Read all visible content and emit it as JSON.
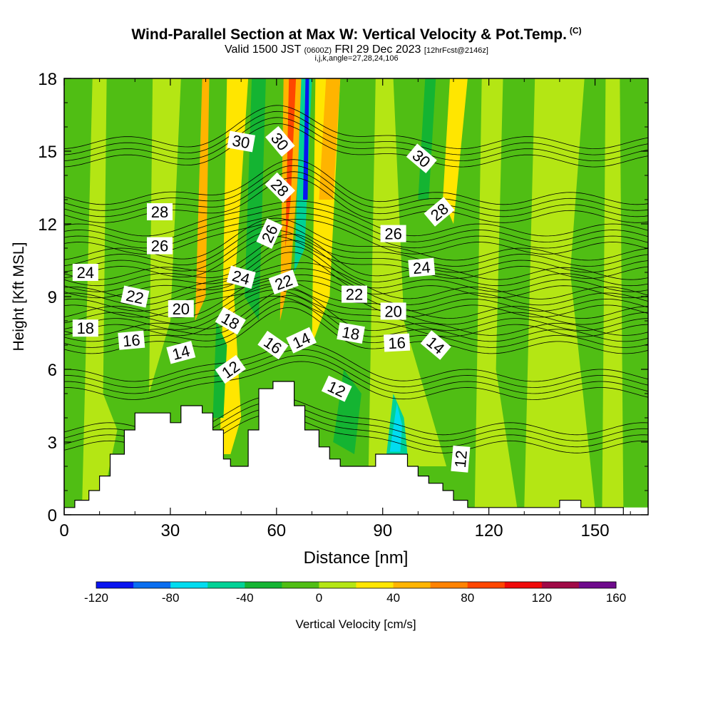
{
  "title": {
    "main": "Wind-Parallel Section at Max W: Vertical Velocity & Pot.Temp.",
    "copyright": "(C)",
    "valid_prefix": "Valid 1500 JST",
    "utc": "(0600Z)",
    "valid_date": "FRI 29 Dec 2023",
    "forecast": "[12hrFcst@2146z]",
    "indices": "i,j,k,angle=27,28,24,106"
  },
  "chart_data": {
    "type": "heatmap",
    "xlabel": "Distance [nm]",
    "ylabel": "Height [Kft MSL]",
    "xlim": [
      0,
      165
    ],
    "ylim": [
      0,
      18
    ],
    "xticks": [
      0,
      30,
      60,
      90,
      120,
      150
    ],
    "yticks": [
      0,
      3,
      6,
      9,
      12,
      15,
      18
    ],
    "colorbar": {
      "label": "Vertical Velocity [cm/s]",
      "ticks": [
        "-120",
        "-80",
        "-40",
        "0",
        "40",
        "80",
        "120",
        "160"
      ],
      "bounds": [
        -120,
        160
      ],
      "colors": [
        "#0a14f0",
        "#0a6ef0",
        "#00dcf0",
        "#00d296",
        "#14b432",
        "#50be14",
        "#b4e614",
        "#ffe600",
        "#ffb400",
        "#ff8200",
        "#ff4600",
        "#f00a0a",
        "#a00a46",
        "#6e0a8c"
      ]
    },
    "terrain": [
      [
        0,
        0.3
      ],
      [
        3,
        0.3
      ],
      [
        3,
        0.6
      ],
      [
        7,
        0.6
      ],
      [
        7,
        1.0
      ],
      [
        10,
        1.0
      ],
      [
        10,
        1.6
      ],
      [
        13,
        1.6
      ],
      [
        13,
        2.5
      ],
      [
        17,
        2.5
      ],
      [
        17,
        3.5
      ],
      [
        20,
        3.5
      ],
      [
        20,
        4.2
      ],
      [
        30,
        4.2
      ],
      [
        30,
        3.8
      ],
      [
        33,
        3.8
      ],
      [
        33,
        4.5
      ],
      [
        39,
        4.5
      ],
      [
        39,
        4.2
      ],
      [
        42,
        4.2
      ],
      [
        42,
        3.5
      ],
      [
        45,
        3.5
      ],
      [
        45,
        2.3
      ],
      [
        47,
        2.3
      ],
      [
        47,
        2.0
      ],
      [
        52,
        2.0
      ],
      [
        52,
        3.5
      ],
      [
        55,
        3.5
      ],
      [
        55,
        5.2
      ],
      [
        59,
        5.2
      ],
      [
        59,
        5.5
      ],
      [
        65,
        5.5
      ],
      [
        65,
        4.5
      ],
      [
        68,
        4.5
      ],
      [
        68,
        3.5
      ],
      [
        72,
        3.5
      ],
      [
        72,
        2.8
      ],
      [
        75,
        2.8
      ],
      [
        75,
        2.3
      ],
      [
        78,
        2.3
      ],
      [
        78,
        2.0
      ],
      [
        88,
        2.0
      ],
      [
        88,
        2.5
      ],
      [
        97,
        2.5
      ],
      [
        97,
        2.0
      ],
      [
        100,
        2.0
      ],
      [
        100,
        1.6
      ],
      [
        103,
        1.6
      ],
      [
        103,
        1.3
      ],
      [
        107,
        1.3
      ],
      [
        107,
        1.0
      ],
      [
        110,
        1.0
      ],
      [
        110,
        0.6
      ],
      [
        114,
        0.6
      ],
      [
        114,
        0.3
      ],
      [
        140,
        0.3
      ],
      [
        140,
        0.6
      ],
      [
        146,
        0.6
      ],
      [
        146,
        0.3
      ],
      [
        158,
        0.3
      ],
      [
        158,
        0
      ],
      [
        0,
        0
      ]
    ],
    "field_bands": [
      {
        "w": -10,
        "band": [
          [
            0,
            0.3
          ],
          [
            0,
            18
          ],
          [
            165,
            18
          ],
          [
            165,
            0.3
          ]
        ]
      },
      {
        "w": 5,
        "band": [
          [
            5,
            0
          ],
          [
            8,
            18
          ],
          [
            12,
            18
          ],
          [
            11,
            5
          ],
          [
            15,
            3.5
          ],
          [
            10,
            0
          ]
        ]
      },
      {
        "w": 5,
        "band": [
          [
            24,
            5
          ],
          [
            25,
            18
          ],
          [
            33,
            18
          ],
          [
            30,
            8
          ]
        ]
      },
      {
        "w": 40,
        "band": [
          [
            37,
            8
          ],
          [
            39,
            18
          ],
          [
            41,
            18
          ],
          [
            40,
            9
          ]
        ]
      },
      {
        "w": 30,
        "band": [
          [
            44,
            2.5
          ],
          [
            46,
            18
          ],
          [
            52,
            18
          ],
          [
            48,
            9
          ],
          [
            50,
            4
          ],
          [
            47,
            2.5
          ]
        ]
      },
      {
        "w": -30,
        "band": [
          [
            51,
            9
          ],
          [
            53,
            18
          ],
          [
            57,
            18
          ],
          [
            55,
            8
          ]
        ]
      },
      {
        "w": -5,
        "band": [
          [
            57,
            4
          ],
          [
            58,
            18
          ],
          [
            62,
            18
          ],
          [
            60,
            8
          ]
        ]
      },
      {
        "w": 50,
        "band": [
          [
            61,
            8
          ],
          [
            62,
            18
          ],
          [
            68,
            18
          ],
          [
            64,
            10
          ]
        ]
      },
      {
        "w": 80,
        "band": [
          [
            62.5,
            11
          ],
          [
            63.5,
            18
          ],
          [
            65.5,
            18
          ],
          [
            64,
            13
          ]
        ]
      },
      {
        "w": -50,
        "band": [
          [
            65,
            10
          ],
          [
            67,
            18
          ],
          [
            70,
            18
          ],
          [
            68,
            11
          ]
        ]
      },
      {
        "w": -110,
        "band": [
          [
            67.5,
            13
          ],
          [
            68.2,
            18
          ],
          [
            69.2,
            18
          ],
          [
            68.8,
            13
          ]
        ]
      },
      {
        "w": 20,
        "band": [
          [
            70,
            7
          ],
          [
            71,
            18
          ],
          [
            78,
            18
          ],
          [
            75,
            9
          ]
        ]
      },
      {
        "w": 40,
        "band": [
          [
            72,
            13
          ],
          [
            74,
            18
          ],
          [
            78,
            18
          ],
          [
            76,
            13
          ]
        ]
      },
      {
        "w": -10,
        "band": [
          [
            75,
            3
          ],
          [
            80,
            18
          ],
          [
            84,
            18
          ],
          [
            82,
            6
          ]
        ]
      },
      {
        "w": 5,
        "band": [
          [
            86,
            2
          ],
          [
            88,
            18
          ],
          [
            93,
            18
          ],
          [
            96,
            8
          ],
          [
            108,
            2
          ]
        ]
      },
      {
        "w": -50,
        "band": [
          [
            91,
            2.4
          ],
          [
            93,
            5
          ],
          [
            96,
            4
          ],
          [
            97,
            2.5
          ],
          [
            95,
            1.9
          ]
        ]
      },
      {
        "w": -70,
        "band": [
          [
            92,
            2.6
          ],
          [
            94,
            4.6
          ],
          [
            95.5,
            3.7
          ],
          [
            95,
            2.6
          ]
        ]
      },
      {
        "w": -40,
        "band": [
          [
            100,
            13
          ],
          [
            102,
            18
          ],
          [
            105,
            18
          ],
          [
            103,
            13
          ]
        ]
      },
      {
        "w": 30,
        "band": [
          [
            107,
            13
          ],
          [
            109,
            18
          ],
          [
            114,
            18
          ],
          [
            110,
            12
          ]
        ]
      },
      {
        "w": 5,
        "band": [
          [
            116,
            0.3
          ],
          [
            118,
            18
          ],
          [
            124,
            18
          ],
          [
            122,
            6
          ],
          [
            128,
            0.3
          ]
        ]
      },
      {
        "w": 5,
        "band": [
          [
            130,
            0.3
          ],
          [
            133,
            18
          ],
          [
            147,
            18
          ],
          [
            143,
            10
          ],
          [
            150,
            0.3
          ]
        ]
      },
      {
        "w": 5,
        "band": [
          [
            152,
            0.3
          ],
          [
            153,
            18
          ],
          [
            157,
            18
          ],
          [
            158,
            0.3
          ]
        ]
      },
      {
        "w": -35,
        "band": [
          [
            42,
            4
          ],
          [
            43,
            8
          ],
          [
            46,
            7
          ],
          [
            45,
            4
          ]
        ]
      },
      {
        "w": -35,
        "band": [
          [
            76,
            3
          ],
          [
            79,
            6
          ],
          [
            84,
            5
          ],
          [
            82,
            2.5
          ]
        ]
      },
      {
        "w": -5,
        "band": [
          [
            112,
            0.6
          ],
          [
            113,
            6
          ],
          [
            116,
            6
          ],
          [
            116,
            0.6
          ]
        ]
      }
    ],
    "isentropes": {
      "levels": [
        {
          "k": 12,
          "baseline": 2.8
        },
        {
          "k": 14,
          "baseline": 5.0
        },
        {
          "k": 16,
          "baseline": 6.9
        },
        {
          "k": 18,
          "baseline": 7.6
        },
        {
          "k": 20,
          "baseline": 8.4
        },
        {
          "k": 22,
          "baseline": 9.2
        },
        {
          "k": 24,
          "baseline": 10.0
        },
        {
          "k": 26,
          "baseline": 11.0
        },
        {
          "k": 28,
          "baseline": 12.3
        },
        {
          "k": 30,
          "baseline": 14.6
        }
      ],
      "ridge_center": 63,
      "ridge_width": 16,
      "ridge_amplitude": 1.4
    },
    "contour_labels": [
      {
        "text": "18",
        "x": 6,
        "y": 7.7,
        "angle": 0
      },
      {
        "text": "16",
        "x": 19,
        "y": 7.2,
        "angle": -5
      },
      {
        "text": "14",
        "x": 33,
        "y": 6.7,
        "angle": -15
      },
      {
        "text": "12",
        "x": 47,
        "y": 6.0,
        "angle": -35
      },
      {
        "text": "20",
        "x": 33,
        "y": 8.5,
        "angle": 0
      },
      {
        "text": "22",
        "x": 20,
        "y": 9.0,
        "angle": 12
      },
      {
        "text": "24",
        "x": 6,
        "y": 10.0,
        "angle": 0
      },
      {
        "text": "26",
        "x": 27,
        "y": 11.1,
        "angle": 0
      },
      {
        "text": "28",
        "x": 27,
        "y": 12.5,
        "angle": 0
      },
      {
        "text": "30",
        "x": 50,
        "y": 15.4,
        "angle": 10
      },
      {
        "text": "18",
        "x": 47,
        "y": 8.0,
        "angle": 30
      },
      {
        "text": "24",
        "x": 50,
        "y": 9.8,
        "angle": 15
      },
      {
        "text": "16",
        "x": 59,
        "y": 7.0,
        "angle": 35
      },
      {
        "text": "26",
        "x": 58,
        "y": 11.6,
        "angle": -65
      },
      {
        "text": "28",
        "x": 61,
        "y": 13.5,
        "angle": 45
      },
      {
        "text": "30",
        "x": 61,
        "y": 15.4,
        "angle": 50
      },
      {
        "text": "22",
        "x": 62,
        "y": 9.6,
        "angle": -20
      },
      {
        "text": "14",
        "x": 67,
        "y": 7.2,
        "angle": -25
      },
      {
        "text": "12",
        "x": 77,
        "y": 5.2,
        "angle": 25
      },
      {
        "text": "18",
        "x": 81,
        "y": 7.5,
        "angle": 10
      },
      {
        "text": "22",
        "x": 82,
        "y": 9.1,
        "angle": 0
      },
      {
        "text": "20",
        "x": 93,
        "y": 8.4,
        "angle": 0
      },
      {
        "text": "26",
        "x": 93,
        "y": 11.6,
        "angle": 0
      },
      {
        "text": "16",
        "x": 94,
        "y": 7.1,
        "angle": -3
      },
      {
        "text": "24",
        "x": 101,
        "y": 10.2,
        "angle": -5
      },
      {
        "text": "30",
        "x": 101,
        "y": 14.7,
        "angle": 40
      },
      {
        "text": "28",
        "x": 106,
        "y": 12.5,
        "angle": -40
      },
      {
        "text": "14",
        "x": 105,
        "y": 7.0,
        "angle": 40
      },
      {
        "text": "12",
        "x": 112,
        "y": 2.3,
        "angle": -85
      }
    ]
  }
}
